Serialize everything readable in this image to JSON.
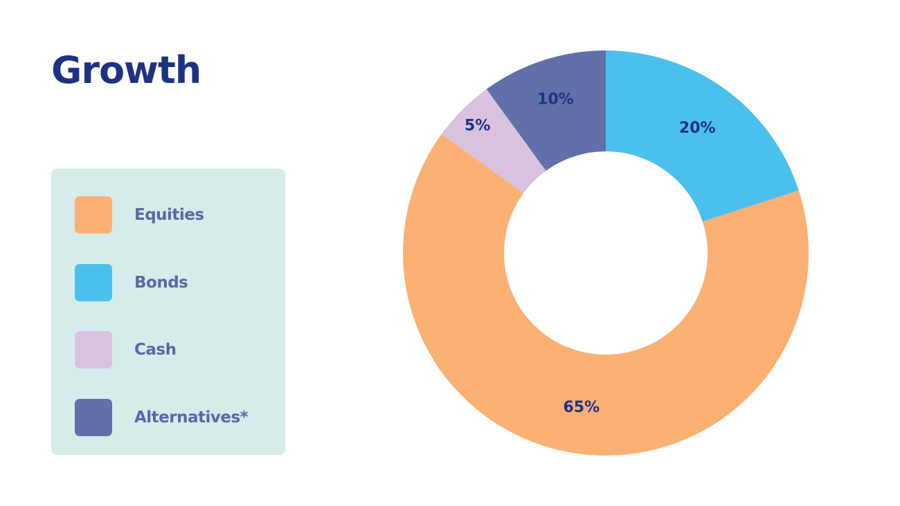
{
  "chart_data": {
    "type": "pie",
    "title": "Growth",
    "donut": true,
    "categories": [
      "Equities",
      "Bonds",
      "Cash",
      "Alternatives*"
    ],
    "values": [
      65,
      20,
      5,
      10
    ],
    "data_labels": [
      "65%",
      "20%",
      "5%",
      "10%"
    ],
    "colors": [
      "#fbb073",
      "#4cc0ec",
      "#d8c2df",
      "#6170a8"
    ],
    "slice_order_clockwise_from_top": [
      "Bonds",
      "Equities",
      "Cash",
      "Alternatives*"
    ],
    "legend_placement": "left"
  }
}
